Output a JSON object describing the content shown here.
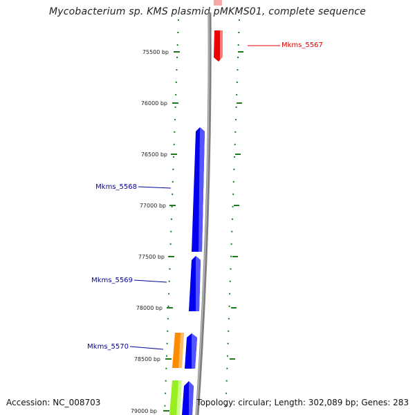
{
  "title": "Mycobacterium sp. KMS plasmid pMKMS01, complete sequence",
  "footer": {
    "accession": "Accession: NC_008703",
    "summary": "Topology: circular; Length: 302,089 bp; Genes: 283"
  },
  "colors": {
    "backbone": "#7f7f7f",
    "tick": "#1a7a1a",
    "forward_gene": "#0000ee",
    "reverse_gene": "#ee0000",
    "orange_gene": "#ff8c00",
    "green_gene": "#99ee22"
  },
  "bp_ticks": [
    "75500 bp",
    "76000 bp",
    "76500 bp",
    "77000 bp",
    "77500 bp",
    "78000 bp",
    "78500 bp",
    "79000 bp"
  ],
  "gene_labels": [
    {
      "text": "Mkms_5567",
      "color": "#dd0000"
    },
    {
      "text": "Mkms_5568",
      "color": "#000099"
    },
    {
      "text": "Mkms_5569",
      "color": "#000099"
    },
    {
      "text": "Mkms_5570",
      "color": "#000099"
    }
  ]
}
